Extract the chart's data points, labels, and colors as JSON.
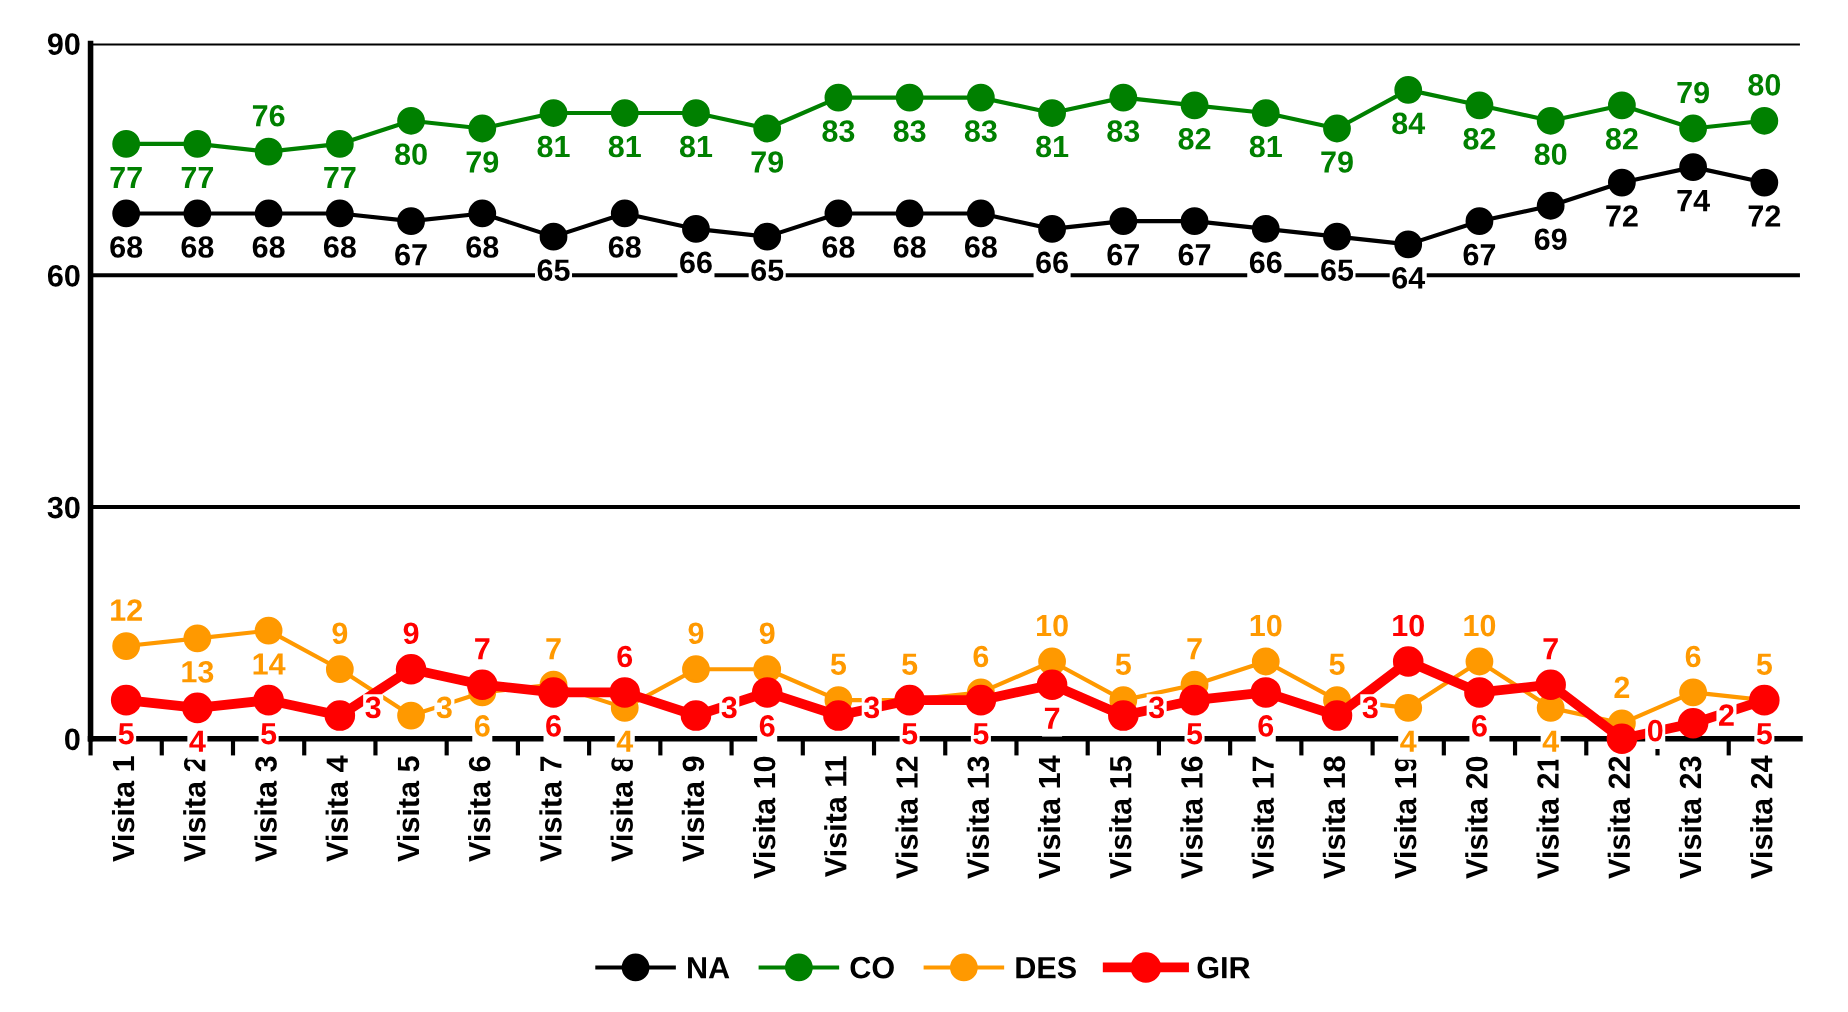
{
  "chart_data": {
    "type": "line",
    "categories": [
      "Visita 1",
      "Visita 2",
      "Visita 3",
      "Visita 4",
      "Visita 5",
      "Visita 6",
      "Visita 7",
      "Visita 8",
      "Visita 9",
      "Visita 10",
      "Visita 11",
      "Visita 12",
      "Visita 13",
      "Visita 14",
      "Visita 15",
      "Visita 16",
      "Visita 17",
      "Visita 18",
      "Visita 19",
      "Visita 20",
      "Visita 21",
      "Visita 22",
      "Visita 23",
      "Visita 24"
    ],
    "series": [
      {
        "name": "NA",
        "color": "#000000",
        "values": [
          68,
          68,
          68,
          68,
          67,
          68,
          65,
          68,
          66,
          65,
          68,
          68,
          68,
          66,
          67,
          67,
          66,
          65,
          64,
          67,
          69,
          72,
          74,
          72
        ]
      },
      {
        "name": "CO",
        "color": "#008000",
        "values": [
          77,
          77,
          76,
          77,
          80,
          79,
          81,
          81,
          81,
          79,
          83,
          83,
          83,
          81,
          83,
          82,
          81,
          79,
          84,
          82,
          80,
          82,
          79,
          80
        ]
      },
      {
        "name": "DES",
        "color": "#ff9900",
        "values": [
          12,
          13,
          14,
          9,
          3,
          6,
          7,
          4,
          9,
          9,
          5,
          5,
          6,
          10,
          5,
          7,
          10,
          5,
          4,
          10,
          4,
          2,
          6,
          5
        ]
      },
      {
        "name": "GIR",
        "color": "#ff0000",
        "values": [
          5,
          4,
          5,
          3,
          9,
          7,
          6,
          6,
          3,
          6,
          3,
          5,
          5,
          7,
          3,
          5,
          6,
          3,
          10,
          6,
          7,
          0,
          2,
          5
        ]
      }
    ],
    "ylim": [
      0,
      90
    ],
    "yticks": [
      0,
      30,
      60,
      90
    ],
    "grid": "y",
    "legend": "bottom",
    "marker": "circle",
    "line_style": "solid",
    "data_labels": true
  }
}
